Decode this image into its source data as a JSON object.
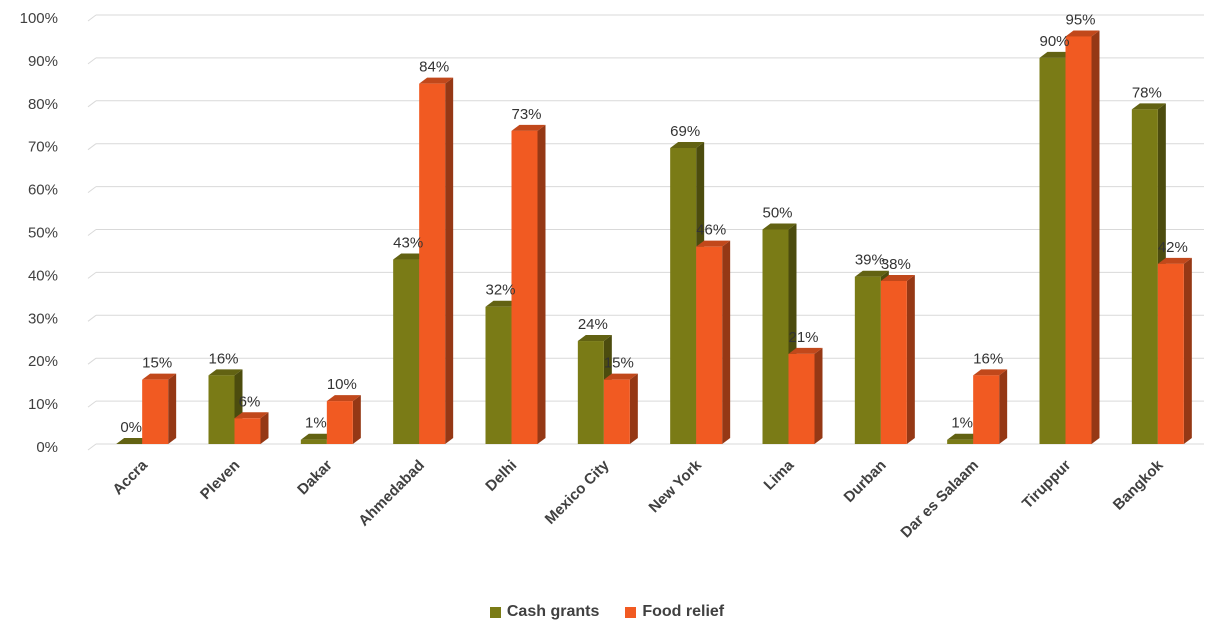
{
  "chart_data": {
    "type": "bar",
    "title": "",
    "xlabel": "",
    "ylabel": "",
    "ylim": [
      0,
      100
    ],
    "yticks": [
      "0%",
      "10%",
      "20%",
      "30%",
      "40%",
      "50%",
      "60%",
      "70%",
      "80%",
      "90%",
      "100%"
    ],
    "grid": true,
    "legend_position": "bottom",
    "categories": [
      "Accra",
      "Pleven",
      "Dakar",
      "Ahmedabad",
      "Delhi",
      "Mexico City",
      "New York",
      "Lima",
      "Durban",
      "Dar es Salaam",
      "Tiruppur",
      "Bangkok"
    ],
    "series": [
      {
        "name": "Cash grants",
        "color": "#7a7b16",
        "values": [
          0,
          16,
          1,
          43,
          32,
          24,
          69,
          50,
          39,
          1,
          90,
          78
        ],
        "labels": [
          "0%",
          "16%",
          "1%",
          "43%",
          "32%",
          "24%",
          "69%",
          "50%",
          "39%",
          "1%",
          "90%",
          "78%"
        ]
      },
      {
        "name": "Food relief",
        "color": "#f15a22",
        "values": [
          15,
          6,
          10,
          84,
          73,
          15,
          46,
          21,
          38,
          16,
          95,
          42
        ],
        "labels": [
          "15%",
          "6%",
          "10%",
          "84%",
          "73%",
          "15%",
          "46%",
          "21%",
          "38%",
          "16%",
          "95%",
          "42%"
        ]
      }
    ]
  }
}
